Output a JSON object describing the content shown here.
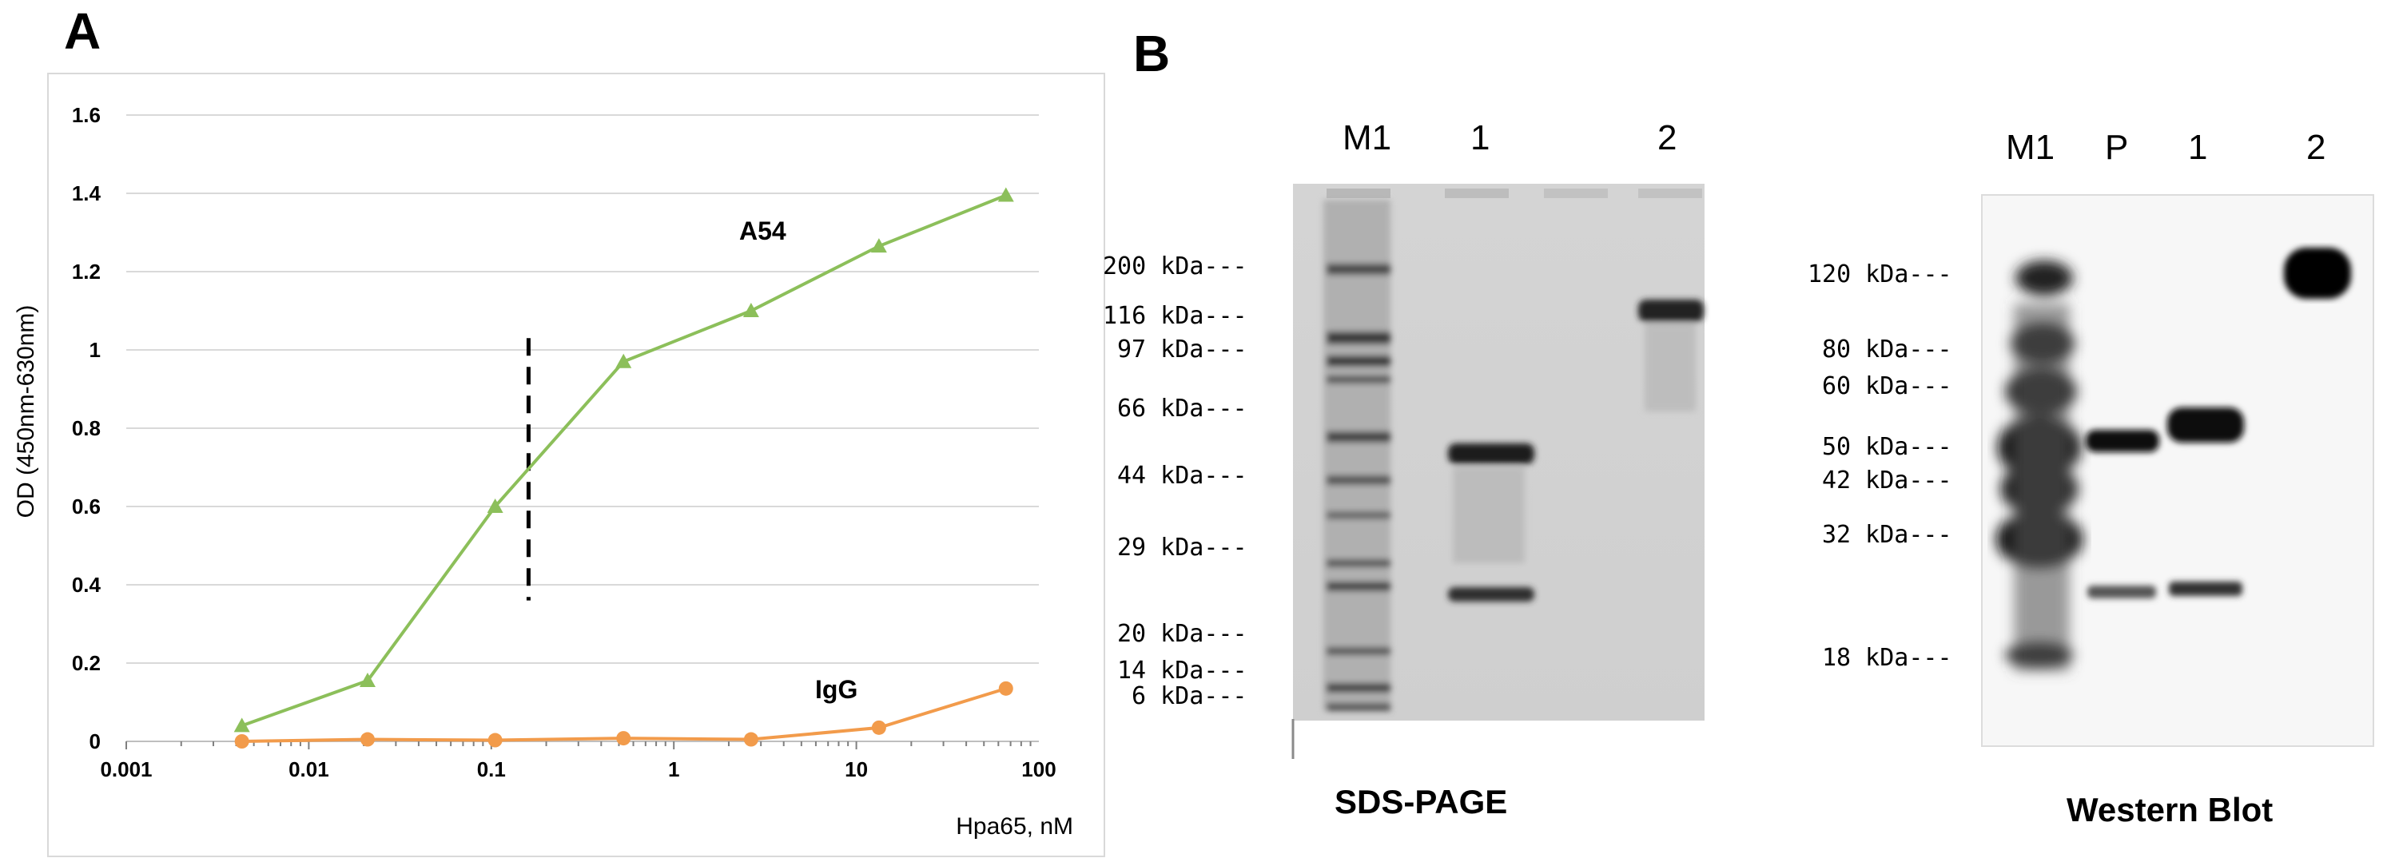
{
  "panel_a": {
    "letter": "A",
    "chart_data": {
      "type": "line",
      "xscale": "log",
      "xlim": [
        0.001,
        100
      ],
      "ylim": [
        0,
        1.6
      ],
      "xlabel": "Hpa65, nM",
      "ylabel": "OD (450nm-630nm)",
      "grid": "horizontal",
      "x_ticks": [
        "0.001",
        "0.01",
        "0.1",
        "1",
        "10",
        "100"
      ],
      "y_ticks": [
        "0",
        "0.2",
        "0.4",
        "0.6",
        "0.8",
        "1",
        "1.2",
        "1.4",
        "1.6"
      ],
      "series": [
        {
          "name": "A54",
          "color": "#8cbf5a",
          "marker": "triangle",
          "x": [
            0.0043,
            0.021,
            0.105,
            0.53,
            2.65,
            13.3,
            66.0
          ],
          "y": [
            0.04,
            0.155,
            0.6,
            0.97,
            1.1,
            1.265,
            1.395
          ]
        },
        {
          "name": "IgG",
          "color": "#f29b4b",
          "marker": "circle",
          "x": [
            0.0043,
            0.021,
            0.105,
            0.53,
            2.65,
            13.3,
            66.0
          ],
          "y": [
            0.0,
            0.005,
            0.003,
            0.008,
            0.005,
            0.035,
            0.135
          ]
        }
      ],
      "annotation": {
        "type": "dashed-vertical-line",
        "x": 0.16,
        "y_range": [
          0.36,
          1.03
        ]
      }
    }
  },
  "panel_b": {
    "letter": "B",
    "sds_page": {
      "caption": "SDS-PAGE",
      "lanes": [
        "M1",
        "1",
        "2"
      ],
      "markers": [
        "200 kDa---",
        "116 kDa---",
        "97 kDa---",
        "66 kDa---",
        "44 kDa---",
        "29 kDa---",
        "20 kDa---",
        "14 kDa---",
        "6 kDa---"
      ]
    },
    "western_blot": {
      "caption": "Western Blot",
      "lanes": [
        "M1",
        "P",
        "1",
        "2"
      ],
      "markers": [
        "120 kDa---",
        "80 kDa---",
        "60 kDa---",
        "50 kDa---",
        "42 kDa---",
        "32 kDa---",
        "18 kDa---"
      ]
    }
  }
}
